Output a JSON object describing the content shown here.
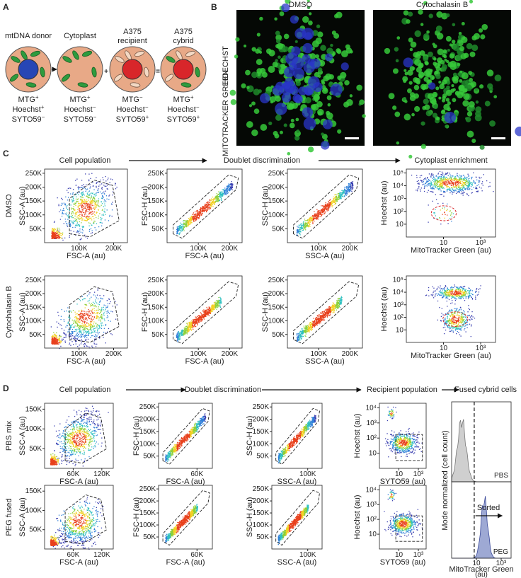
{
  "panel_a": {
    "label": "A",
    "cells": [
      {
        "title": [
          "mtDNA donor"
        ],
        "markers": [
          [
            "MTG",
            "+"
          ],
          [
            "Hoechst",
            "+"
          ],
          [
            "SYTO59",
            "−"
          ]
        ]
      },
      {
        "title": [
          "Cytoplast"
        ],
        "markers": [
          [
            "MTG",
            "+"
          ],
          [
            "Hoechst",
            "−"
          ],
          [
            "SYTO59",
            "−"
          ]
        ]
      },
      {
        "title": [
          "A375",
          "recipient"
        ],
        "markers": [
          [
            "MTG",
            "−"
          ],
          [
            "Hoechst",
            "−"
          ],
          [
            "SYTO59",
            "+"
          ]
        ]
      },
      {
        "title": [
          "A375",
          "cybrid"
        ],
        "markers": [
          [
            "MTG",
            "+"
          ],
          [
            "Hoechst",
            "−"
          ],
          [
            "SYTO59",
            "+"
          ]
        ]
      }
    ],
    "operators": [
      "+",
      "="
    ]
  },
  "panel_b": {
    "label": "B",
    "conditions": [
      "DMSO",
      "Cytochalasin B"
    ],
    "stains": [
      "HOECHST",
      "MITOTRACKER GREEN"
    ]
  },
  "panel_c": {
    "label": "C",
    "steps": [
      "Cell population",
      "Doublet discrimination",
      "Cytoplast enrichment"
    ],
    "rows": [
      {
        "name": "DMSO",
        "plots": [
          {
            "x_label": "FSC-A (au)",
            "y_label": "SSC-A (au)",
            "xticks": [
              "100K",
              "200K"
            ],
            "yticks": [
              "50K",
              "100K",
              "150K",
              "200K",
              "250K"
            ]
          },
          {
            "x_label": "FSC-A (au)",
            "y_label": "FSC-H (au)",
            "xticks": [
              "100K",
              "200K"
            ],
            "yticks": [
              "50K",
              "100K",
              "150K",
              "200K",
              "250K"
            ]
          },
          {
            "x_label": "SSC-A (au)",
            "y_label": "SSC-H (au)",
            "xticks": [
              "100K",
              "200K"
            ],
            "yticks": [
              "50K",
              "100K",
              "150K",
              "200K",
              "250K"
            ]
          },
          {
            "x_label": "MitoTracker Green (au)",
            "y_label": "Hoechst (au)",
            "xticks": [
              "10",
              "10³"
            ],
            "yticks": [
              "10",
              "10²",
              "10³",
              "10⁴",
              "10⁵"
            ]
          }
        ]
      },
      {
        "name": "Cytochalasin B",
        "plots": [
          {
            "x_label": "FSC-A (au)",
            "y_label": "SSC-A (au)",
            "xticks": [
              "100K",
              "200K"
            ],
            "yticks": [
              "50K",
              "100K",
              "150K",
              "200K",
              "250K"
            ]
          },
          {
            "x_label": "FSC-A (au)",
            "y_label": "FSC-H (au)",
            "xticks": [
              "100K",
              "200K"
            ],
            "yticks": [
              "50K",
              "100K",
              "150K",
              "200K",
              "250K"
            ]
          },
          {
            "x_label": "SSC-A (au)",
            "y_label": "SSC-H (au)",
            "xticks": [
              "100K",
              "200K"
            ],
            "yticks": [
              "50K",
              "100K",
              "150K",
              "200K",
              "250K"
            ]
          },
          {
            "x_label": "MitoTracker Green (au)",
            "y_label": "Hoechst (au)",
            "xticks": [
              "10",
              "10³"
            ],
            "yticks": [
              "10",
              "10²",
              "10³",
              "10⁴",
              "10⁵"
            ]
          }
        ]
      }
    ]
  },
  "panel_d": {
    "label": "D",
    "steps": [
      "Cell population",
      "Doublet discrimination",
      "Recipient population",
      "Fused cybrid cells"
    ],
    "rows": [
      {
        "name": "PBS mix",
        "plots": [
          {
            "x_label": "FSC-A (au)",
            "y_label": "SSC-A (au)",
            "xticks": [
              "60K",
              "120K"
            ],
            "yticks": [
              "50K",
              "100K",
              "150K"
            ]
          },
          {
            "x_label": "FSC-A (au)",
            "y_label": "FSC-H (au)",
            "xticks": [
              "60K"
            ],
            "yticks": [
              "50K",
              "100K",
              "150K",
              "200K",
              "250K"
            ]
          },
          {
            "x_label": "SSC-A (au)",
            "y_label": "SSC-H (au)",
            "xticks": [
              "100K"
            ],
            "yticks": [
              "50K",
              "100K",
              "150K",
              "200K",
              "250K"
            ]
          },
          {
            "x_label": "SYTO59 (au)",
            "y_label": "Hoechst (au)",
            "xticks": [
              "10",
              "10³"
            ],
            "yticks": [
              "10",
              "10²",
              "10³",
              "10⁴"
            ]
          }
        ]
      },
      {
        "name": "PEG fused",
        "plots": [
          {
            "x_label": "FSC-A (au)",
            "y_label": "SSC-A (au)",
            "xticks": [
              "60K",
              "120K"
            ],
            "yticks": [
              "50K",
              "100K",
              "150K"
            ]
          },
          {
            "x_label": "FSC-A (au)",
            "y_label": "FSC-H (au)",
            "xticks": [
              "60K"
            ],
            "yticks": [
              "50K",
              "100K",
              "150K",
              "200K",
              "250K"
            ]
          },
          {
            "x_label": "SSC-A (au)",
            "y_label": "SSC-H (au)",
            "xticks": [
              "100K"
            ],
            "yticks": [
              "50K",
              "100K",
              "150K",
              "200K",
              "250K"
            ]
          },
          {
            "x_label": "SYTO59 (au)",
            "y_label": "Hoechst (au)",
            "xticks": [
              "10",
              "10³"
            ],
            "yticks": [
              "10",
              "10²",
              "10³",
              "10⁴"
            ]
          }
        ]
      }
    ],
    "histogram": {
      "groups": [
        "PBS",
        "PEG"
      ],
      "arrow_label": "Sorted",
      "y_label": "Mode normalized (cell count)",
      "x_label": [
        "MitoTracker Green",
        "(au)"
      ],
      "xticks": [
        "10",
        "10³"
      ]
    }
  }
}
